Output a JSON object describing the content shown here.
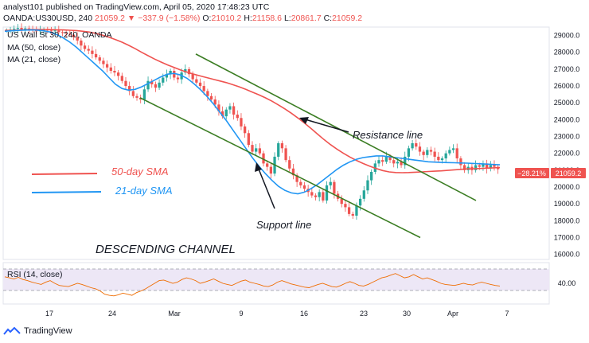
{
  "header": {
    "publisher_line": "analyst101 published on TradingView.com, April 05, 2020 17:48:23 UTC",
    "symbol": "OANDA:US30USD, 240",
    "last": "21059.2",
    "change": "−337.9 (−1.58%)",
    "o_label": "O:",
    "o_value": "21010.2",
    "h_label": "H:",
    "h_value": "21158.6",
    "l_label": "L:",
    "l_value": "20861.7",
    "c_label": "C:",
    "c_value": "21059.2"
  },
  "legend": {
    "title": "US Wall St 30, 240, OANDA",
    "ma50": "MA (50, close)",
    "ma21": "MA (21, close)"
  },
  "annotations": {
    "sma50": "50-day SMA",
    "sma21": "21-day SMA",
    "resistance": "Resistance line",
    "support": "Support line",
    "channel": "DESCENDING CHANNEL"
  },
  "price_badges": {
    "pct": "−28.21%",
    "price": "21059.2"
  },
  "rsi": {
    "label": "RSI (14, close)",
    "ticks": [
      "40.00"
    ],
    "values": [
      62,
      60,
      58,
      61,
      57,
      55,
      52,
      50,
      48,
      52,
      55,
      50,
      46,
      45,
      44,
      47,
      50,
      48,
      45,
      42,
      40,
      36,
      30,
      28,
      27,
      29,
      32,
      30,
      28,
      33,
      36,
      40,
      45,
      50,
      55,
      56,
      53,
      50,
      52,
      57,
      60,
      58,
      55,
      50,
      52,
      55,
      58,
      54,
      50,
      48,
      46,
      50,
      54,
      56,
      52,
      50,
      48,
      45,
      44,
      47,
      52,
      55,
      52,
      49,
      47,
      45,
      43,
      42,
      45,
      48,
      50,
      47,
      44,
      43,
      46,
      50,
      53,
      50,
      46,
      45,
      48,
      52,
      56,
      60,
      62,
      65,
      68,
      64,
      60,
      62,
      66,
      62,
      58,
      60,
      57,
      54,
      50,
      48,
      47,
      46,
      48,
      50,
      48,
      47,
      50,
      52,
      50,
      48,
      46,
      45
    ]
  },
  "footer": {
    "brand": "TradingView"
  },
  "colors": {
    "up": "#26a69a",
    "down": "#ef5350",
    "ma50": "#ef5350",
    "ma21": "#2196f3",
    "channel": "#3b7d23",
    "rsi_line": "#ef6c00",
    "rsi_band": "#ede7f6"
  },
  "chart_data": {
    "type": "candlestick",
    "title": "US Wall St 30, 240, OANDA",
    "x_ticks": [
      "17",
      "24",
      "Mar",
      "9",
      "16",
      "23",
      "30",
      "Apr",
      "7"
    ],
    "y_ticks": [
      "29000.0",
      "28000.0",
      "27000.0",
      "26000.0",
      "25000.0",
      "24000.0",
      "23000.0",
      "22000.0",
      "21000.0",
      "20000.0",
      "19000.0",
      "18000.0",
      "17000.0",
      "16000.0"
    ],
    "ylim": [
      15700,
      29500
    ],
    "close_path": [
      29300,
      29350,
      29400,
      29450,
      29350,
      29420,
      29380,
      29300,
      29250,
      29300,
      29350,
      29300,
      29250,
      29300,
      29200,
      29150,
      29100,
      29050,
      28900,
      28700,
      28400,
      28200,
      28100,
      27900,
      27700,
      27500,
      27300,
      27100,
      26900,
      26800,
      26600,
      26300,
      26000,
      25700,
      25400,
      25300,
      25200,
      25800,
      26300,
      26100,
      25900,
      26200,
      26500,
      26700,
      26900,
      26500,
      26400,
      26800,
      27000,
      26700,
      26400,
      26200,
      26000,
      25700,
      25400,
      25200,
      24900,
      24500,
      24200,
      24600,
      24800,
      24300,
      24100,
      23600,
      23200,
      22500,
      22100,
      22300,
      22000,
      21400,
      21200,
      20800,
      21800,
      22600,
      22300,
      21600,
      21100,
      20700,
      20300,
      20100,
      19900,
      19700,
      19500,
      19400,
      19700,
      19200,
      20100,
      20300,
      19600,
      19300,
      19000,
      18800,
      18400,
      18300,
      18900,
      19300,
      19800,
      20400,
      20900,
      21400,
      21600,
      21500,
      21800,
      21600,
      21400,
      21500,
      21300,
      21800,
      22300,
      22600,
      22400,
      22100,
      21900,
      22200,
      22100,
      21800,
      21600,
      21700,
      22000,
      22200,
      22300,
      21700,
      21300,
      21000,
      21200,
      21000,
      21300,
      21200,
      21400,
      21100,
      21300,
      21200,
      21059
    ],
    "series": [
      {
        "name": "MA (50, close)",
        "values": [
          29300,
          29300,
          29320,
          29340,
          29360,
          29360,
          29360,
          29350,
          29340,
          29330,
          29310,
          29290,
          29250,
          29200,
          29120,
          29020,
          28900,
          28760,
          28600,
          28420,
          28220,
          28000,
          27800,
          27600,
          27420,
          27250,
          27100,
          26950,
          26820,
          26700,
          26600,
          26500,
          26400,
          26300,
          26200,
          26080,
          25950,
          25800,
          25640,
          25480,
          25300,
          25100,
          24880,
          24640,
          24380,
          24100,
          23800,
          23480,
          23150,
          22820,
          22520,
          22250,
          22000,
          21780,
          21580,
          21400,
          21240,
          21100,
          20980,
          20900,
          20860,
          20850,
          20860,
          20880,
          20900,
          20920,
          20940,
          20960,
          20990,
          21020,
          21050,
          21080,
          21090,
          21100,
          21120,
          21140,
          21160
        ]
      },
      {
        "name": "MA (21, close)",
        "values": [
          29250,
          29280,
          29300,
          29320,
          29330,
          29320,
          29280,
          29200,
          29050,
          28850,
          28600,
          28300,
          27950,
          27600,
          27250,
          26900,
          26500,
          26100,
          25850,
          25750,
          25800,
          25950,
          26150,
          26350,
          26550,
          26700,
          26750,
          26650,
          26450,
          26150,
          25800,
          25400,
          24950,
          24450,
          23950,
          23400,
          22850,
          22300,
          21750,
          21250,
          20800,
          20400,
          20050,
          19800,
          19650,
          19600,
          19700,
          19900,
          20150,
          20450,
          20750,
          21050,
          21300,
          21500,
          21650,
          21750,
          21800,
          21850,
          21850,
          21800,
          21750,
          21700,
          21650,
          21600,
          21550,
          21500,
          21480,
          21460,
          21450,
          21440,
          21430,
          21420,
          21400,
          21380,
          21360,
          21340,
          21320
        ]
      }
    ],
    "lines": {
      "resistance": [
        [
          27900,
          1
        ],
        [
          19200,
          60
        ]
      ],
      "support": [
        [
          25300,
          1
        ],
        [
          17000,
          60
        ]
      ]
    }
  }
}
